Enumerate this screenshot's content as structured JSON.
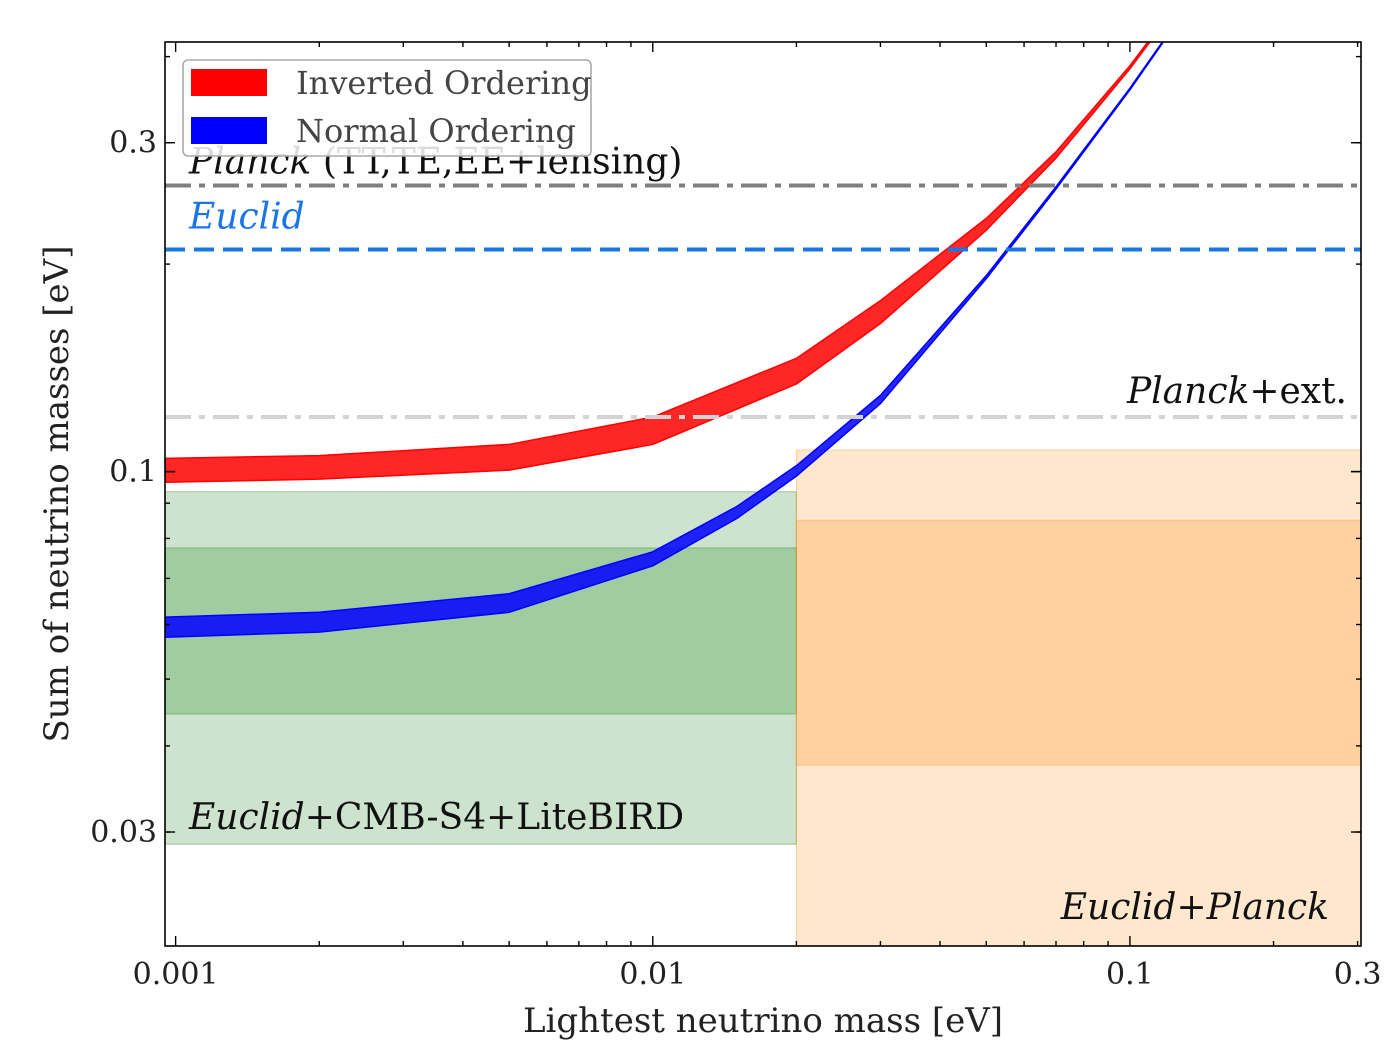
{
  "chart_data": {
    "type": "area",
    "xlabel": "Lightest neutrino mass [eV]",
    "ylabel": "Sum of neutrino masses [eV]",
    "xscale": "log",
    "yscale": "log",
    "xlim": [
      0.00095,
      0.305
    ],
    "ylim": [
      0.0205,
      0.42
    ],
    "xticks": [
      {
        "value": 0.001,
        "label": "0.001"
      },
      {
        "value": 0.01,
        "label": "0.01"
      },
      {
        "value": 0.1,
        "label": "0.1"
      },
      {
        "value": 0.3,
        "label": "0.3"
      }
    ],
    "yticks": [
      {
        "value": 0.03,
        "label": "0.03"
      },
      {
        "value": 0.1,
        "label": "0.1"
      },
      {
        "value": 0.3,
        "label": "0.3"
      }
    ],
    "grid": false,
    "legend": {
      "placement": "top-left",
      "entries": [
        {
          "label": "Inverted Ordering",
          "color": "#ff0000"
        },
        {
          "label": "Normal Ordering",
          "color": "#0000ff"
        }
      ]
    },
    "series": [
      {
        "name": "Inverted Ordering",
        "color": "#ff0000",
        "x": [
          0.00095,
          0.002,
          0.005,
          0.01,
          0.02,
          0.03,
          0.05,
          0.07,
          0.1,
          0.15
        ],
        "lower": [
          0.0965,
          0.0975,
          0.1005,
          0.1095,
          0.134,
          0.164,
          0.224,
          0.285,
          0.384,
          0.56
        ],
        "upper": [
          0.1045,
          0.1055,
          0.1095,
          0.12,
          0.146,
          0.177,
          0.233,
          0.291,
          0.388,
          0.563
        ]
      },
      {
        "name": "Normal Ordering",
        "color": "#0000ff",
        "x": [
          0.00095,
          0.002,
          0.005,
          0.01,
          0.015,
          0.02,
          0.03,
          0.05,
          0.07,
          0.1,
          0.15
        ],
        "lower": [
          0.0575,
          0.0585,
          0.0625,
          0.073,
          0.0855,
          0.0985,
          0.1255,
          0.1905,
          0.257,
          0.358,
          0.535
        ],
        "upper": [
          0.0615,
          0.0625,
          0.0665,
          0.0765,
          0.089,
          0.102,
          0.129,
          0.1925,
          0.259,
          0.36,
          0.537
        ]
      }
    ],
    "reference_lines": [
      {
        "y": 0.26,
        "style": "dashdot",
        "color": "#808080",
        "label_parts": [
          {
            "text": "Planck",
            "italic": true
          },
          {
            "text": " (TT,TE,EE+lensing)",
            "italic": false
          }
        ]
      },
      {
        "y": 0.21,
        "style": "dashed",
        "color": "#1a75e6",
        "label_parts": [
          {
            "text": "Euclid",
            "italic": true
          }
        ]
      },
      {
        "y": 0.12,
        "style": "dashdot",
        "color": "#d3d3d3",
        "label_parts": [
          {
            "text": "Planck",
            "italic": true
          },
          {
            "text": "+ext.",
            "italic": false
          }
        ]
      }
    ],
    "regions": [
      {
        "name": "Euclid+CMB-S4+LiteBIRD",
        "color": "#2e8b2e",
        "x": [
          0.00095,
          0.02
        ],
        "outer": [
          0.0288,
          0.0935
        ],
        "inner": [
          0.0445,
          0.0775
        ],
        "label_parts": [
          {
            "text": "Euclid",
            "italic": true
          },
          {
            "text": "+CMB-S4+LiteBIRD",
            "italic": false
          }
        ]
      },
      {
        "name": "Euclid+Planck",
        "color": "#ff9a30",
        "x": [
          0.02,
          0.305
        ],
        "outer": [
          0.0205,
          0.1075
        ],
        "inner": [
          0.0375,
          0.085
        ],
        "label_parts": [
          {
            "text": "Euclid",
            "italic": true
          },
          {
            "text": "+",
            "italic": false
          },
          {
            "text": "Planck",
            "italic": true
          }
        ]
      }
    ]
  }
}
